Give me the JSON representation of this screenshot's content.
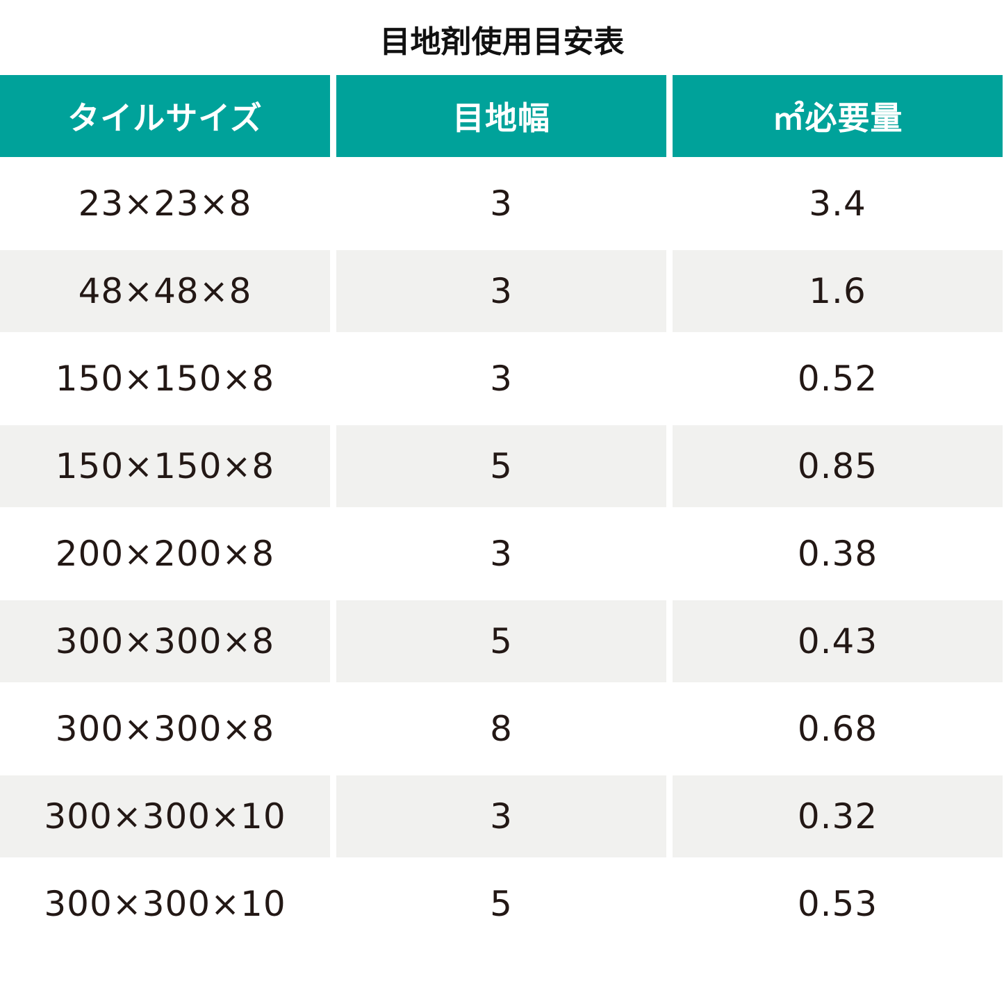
{
  "title": "目地剤使用目安表",
  "table": {
    "headers": [
      "タイルサイズ",
      "目地幅",
      "㎡必要量"
    ],
    "rows": [
      [
        "23×23×8",
        "3",
        "3.4"
      ],
      [
        "48×48×8",
        "3",
        "1.6"
      ],
      [
        "150×150×8",
        "3",
        "0.52"
      ],
      [
        "150×150×8",
        "5",
        "0.85"
      ],
      [
        "200×200×8",
        "3",
        "0.38"
      ],
      [
        "300×300×8",
        "5",
        "0.43"
      ],
      [
        "300×300×8",
        "8",
        "0.68"
      ],
      [
        "300×300×10",
        "3",
        "0.32"
      ],
      [
        "300×300×10",
        "5",
        "0.53"
      ]
    ]
  },
  "colors": {
    "header_bg": "#00a29a",
    "header_text": "#ffffff",
    "alt_row_bg": "#f1f1ef",
    "body_text": "#231815"
  }
}
